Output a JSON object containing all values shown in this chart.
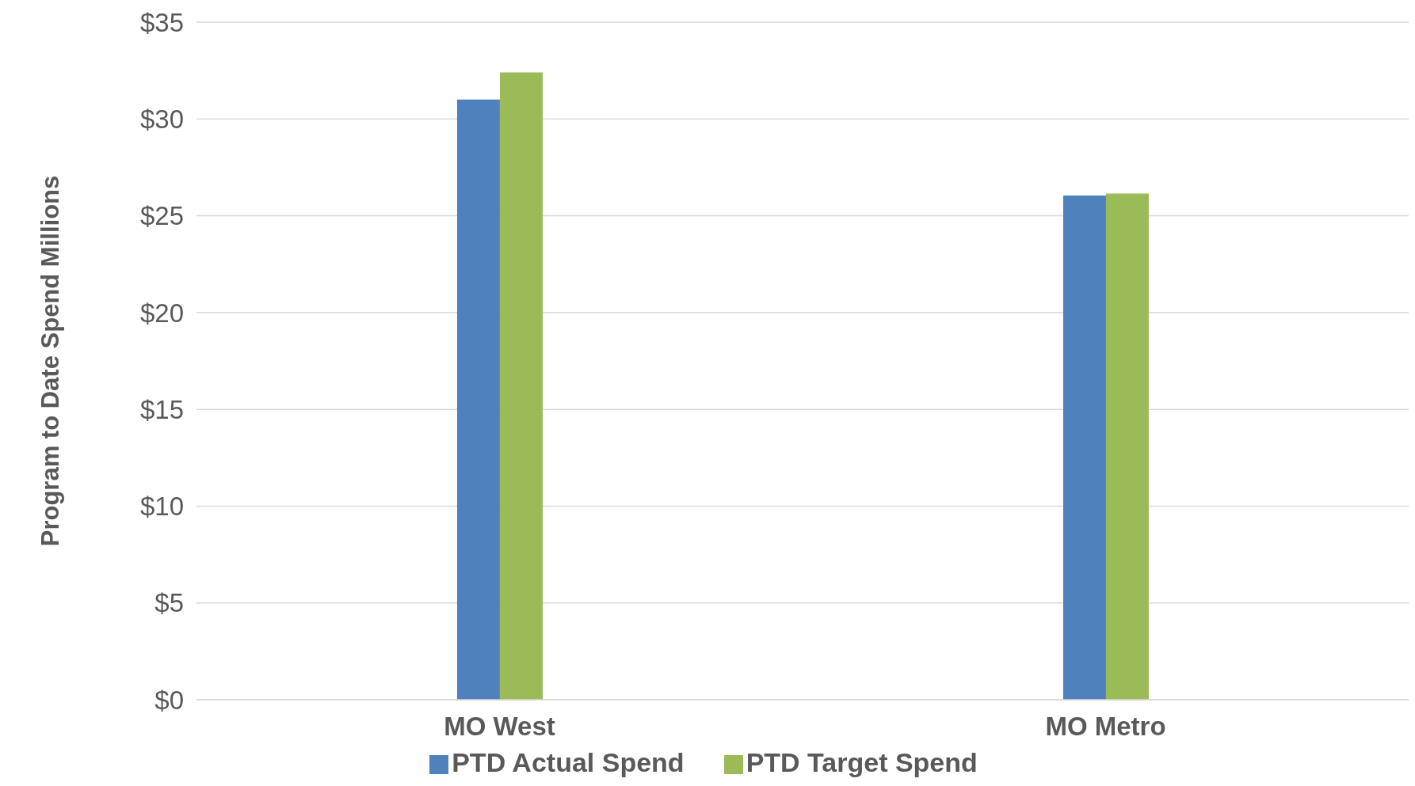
{
  "chart_data": {
    "type": "bar",
    "ylabel": "Program to Date Spend Millions",
    "categories": [
      "MO West",
      "MO Metro"
    ],
    "series": [
      {
        "name": "PTD Actual Spend",
        "color": "#4f81bd",
        "values": [
          31.0,
          26.05
        ]
      },
      {
        "name": "PTD Target Spend",
        "color": "#9bbb59",
        "values": [
          32.4,
          26.15
        ]
      }
    ],
    "ylim": [
      0,
      35
    ],
    "yticks": [
      {
        "value": 0,
        "label": "$0"
      },
      {
        "value": 5,
        "label": "$5"
      },
      {
        "value": 10,
        "label": "$10"
      },
      {
        "value": 15,
        "label": "$15"
      },
      {
        "value": 20,
        "label": "$20"
      },
      {
        "value": 25,
        "label": "$25"
      },
      {
        "value": 30,
        "label": "$30"
      },
      {
        "value": 35,
        "label": "$35"
      }
    ],
    "grid": "y",
    "legend": "bottom"
  }
}
